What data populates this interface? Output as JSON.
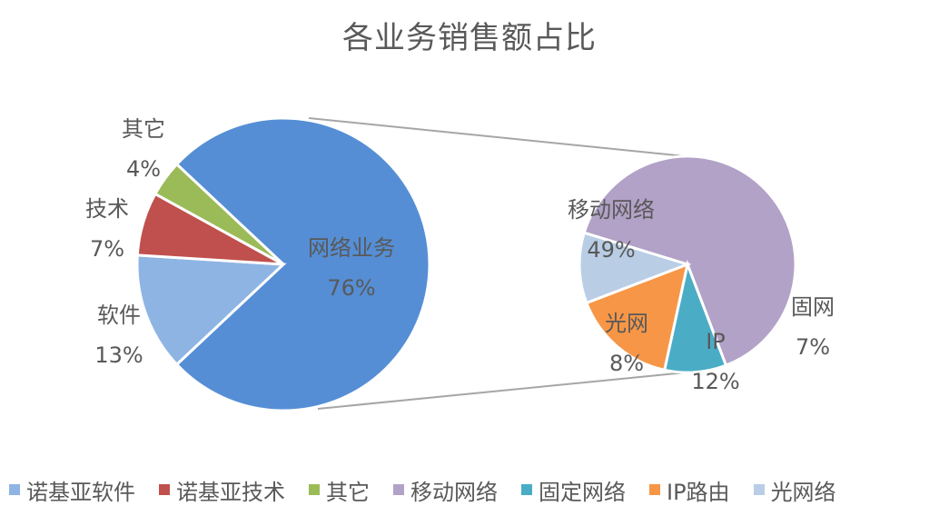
{
  "chart_data": {
    "type": "pie",
    "title": "各业务销售额占比",
    "main_pie": {
      "slices": [
        {
          "label": "网络业务",
          "value": 76,
          "display": "76%",
          "color": "#558ED5"
        },
        {
          "label": "软件",
          "value": 13,
          "display": "13%",
          "color": "#8EB4E3"
        },
        {
          "label": "技术",
          "value": 7,
          "display": "7%",
          "color": "#C0504D"
        },
        {
          "label": "其它",
          "value": 4,
          "display": "4%",
          "color": "#9BBB59"
        }
      ]
    },
    "secondary_pie": {
      "slices": [
        {
          "label": "移动网络",
          "value": 49,
          "display": "49%",
          "color": "#B2A2C7"
        },
        {
          "label": "固网",
          "value": 7,
          "display": "7%",
          "color": "#4BACC6"
        },
        {
          "label": "IP",
          "value": 12,
          "display": "12%",
          "color": "#F79646"
        },
        {
          "label": "光网",
          "value": 8,
          "display": "8%",
          "color": "#B9CDE5"
        }
      ]
    },
    "legend": [
      {
        "label": "诺基亚软件",
        "color": "#8EB4E3"
      },
      {
        "label": "诺基亚技术",
        "color": "#C0504D"
      },
      {
        "label": "其它",
        "color": "#9BBB59"
      },
      {
        "label": "移动网络",
        "color": "#B2A2C7"
      },
      {
        "label": "固定网络",
        "color": "#4BACC6"
      },
      {
        "label": "IP路由",
        "color": "#F79646"
      },
      {
        "label": "光网络",
        "color": "#B9CDE5"
      }
    ],
    "legend_placement": "bottom"
  }
}
